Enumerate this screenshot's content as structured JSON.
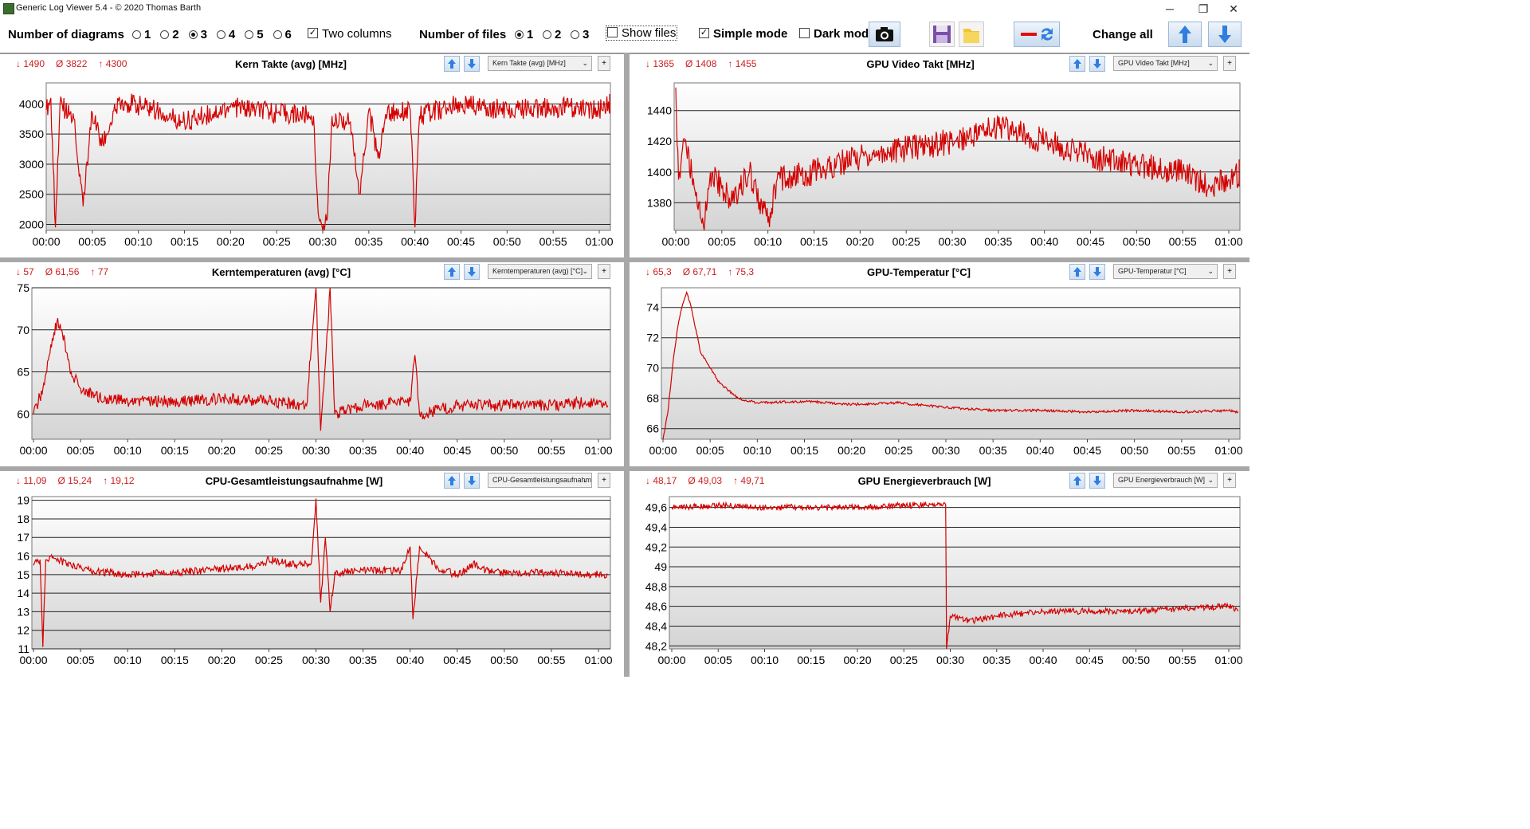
{
  "window": {
    "title": "Generic Log Viewer 5.4 - © 2020 Thomas Barth",
    "minimize": "─",
    "restore": "❐",
    "close": "✕"
  },
  "toolbar": {
    "diagrams_label": "Number of diagrams",
    "diagram_options": [
      "1",
      "2",
      "3",
      "4",
      "5",
      "6"
    ],
    "diagram_selected": "3",
    "two_columns_label": "Two columns",
    "two_columns_checked": true,
    "files_label": "Number of files",
    "file_options": [
      "1",
      "2",
      "3"
    ],
    "file_selected": "1",
    "show_files_label": "Show files",
    "show_files_checked": false,
    "simple_mode_label": "Simple mode",
    "simple_mode_checked": true,
    "dark_mode_label": "Dark mod",
    "dark_mode_checked": false,
    "change_all_label": "Change all"
  },
  "colors": {
    "series": "#d40000",
    "stats": "#cc1f1f",
    "accent": "#2f7fe0"
  },
  "panels": [
    {
      "id": "kern-takte",
      "title": "Kern Takte (avg) [MHz]",
      "dropdown": "Kern Takte (avg) [MHz]",
      "stats": {
        "min": "↓ 1490",
        "avg": "Ø 3822",
        "max": "↑ 4300"
      },
      "chart_data": {
        "type": "line",
        "title": "Kern Takte (avg) [MHz]",
        "x_ticks": [
          "00:00",
          "00:05",
          "00:10",
          "00:15",
          "00:20",
          "00:25",
          "00:30",
          "00:35",
          "00:40",
          "00:45",
          "00:50",
          "00:55",
          "01:00"
        ],
        "y_ticks": [
          "2000",
          "2500",
          "3000",
          "3500",
          "4000"
        ],
        "ylim": [
          1900,
          4350
        ],
        "xlim_min": [
          0,
          62
        ],
        "series": [
          {
            "points": [
              [
                0,
                3900
              ],
              [
                0.5,
                4100
              ],
              [
                1,
                1950
              ],
              [
                1.5,
                4000
              ],
              [
                3,
                3750
              ],
              [
                4,
                2300
              ],
              [
                5,
                3850
              ],
              [
                6,
                3300
              ],
              [
                8,
                4050
              ],
              [
                12,
                3900
              ],
              [
                15,
                3700
              ],
              [
                20,
                3950
              ],
              [
                25,
                3850
              ],
              [
                29,
                3800
              ],
              [
                29.5,
                2200
              ],
              [
                30,
                1900
              ],
              [
                30.5,
                2100
              ],
              [
                31,
                3800
              ],
              [
                33,
                3700
              ],
              [
                34,
                2500
              ],
              [
                35,
                3900
              ],
              [
                36,
                3100
              ],
              [
                37,
                3850
              ],
              [
                39.5,
                3900
              ],
              [
                40,
                1950
              ],
              [
                40.5,
                3800
              ],
              [
                45,
                4000
              ],
              [
                50,
                3900
              ],
              [
                55,
                3950
              ],
              [
                60,
                3900
              ],
              [
                62,
                4050
              ]
            ]
          }
        ]
      }
    },
    {
      "id": "gpu-video-takt",
      "title": "GPU Video Takt [MHz]",
      "dropdown": "GPU Video Takt [MHz]",
      "stats": {
        "min": "↓ 1365",
        "avg": "Ø 1408",
        "max": "↑ 1455"
      },
      "chart_data": {
        "type": "line",
        "title": "GPU Video Takt [MHz]",
        "x_ticks": [
          "00:00",
          "00:05",
          "00:10",
          "00:15",
          "00:20",
          "00:25",
          "00:30",
          "00:35",
          "00:40",
          "00:45",
          "00:50",
          "00:55",
          "01:00"
        ],
        "y_ticks": [
          "1380",
          "1400",
          "1420",
          "1440"
        ],
        "ylim": [
          1362,
          1458
        ],
        "xlim_min": [
          0,
          62
        ],
        "series": [
          {
            "points": [
              [
                0,
                1455
              ],
              [
                0.3,
                1395
              ],
              [
                1,
                1420
              ],
              [
                2,
                1390
              ],
              [
                3,
                1365
              ],
              [
                4,
                1400
              ],
              [
                6,
                1380
              ],
              [
                8,
                1400
              ],
              [
                10,
                1367
              ],
              [
                11,
                1395
              ],
              [
                15,
                1400
              ],
              [
                20,
                1410
              ],
              [
                25,
                1415
              ],
              [
                30,
                1420
              ],
              [
                35,
                1430
              ],
              [
                40,
                1420
              ],
              [
                45,
                1410
              ],
              [
                50,
                1405
              ],
              [
                55,
                1400
              ],
              [
                58,
                1390
              ],
              [
                60,
                1395
              ],
              [
                62,
                1400
              ]
            ]
          }
        ]
      }
    },
    {
      "id": "kerntemperaturen",
      "title": "Kerntemperaturen (avg) [°C]",
      "dropdown": "Kerntemperaturen (avg) [°C]",
      "stats": {
        "min": "↓ 57",
        "avg": "Ø 61,56",
        "max": "↑ 77"
      },
      "chart_data": {
        "type": "line",
        "title": "Kerntemperaturen (avg) [°C]",
        "x_ticks": [
          "00:00",
          "00:05",
          "00:10",
          "00:15",
          "00:20",
          "00:25",
          "00:30",
          "00:35",
          "00:40",
          "00:45",
          "00:50",
          "00:55",
          "01:00"
        ],
        "y_ticks": [
          "60",
          "65",
          "70",
          "75"
        ],
        "ylim": [
          57,
          75
        ],
        "xlim_min": [
          0,
          61
        ],
        "series": [
          {
            "points": [
              [
                0,
                60
              ],
              [
                1,
                63
              ],
              [
                2,
                69
              ],
              [
                2.5,
                71
              ],
              [
                3,
                70
              ],
              [
                4,
                65
              ],
              [
                5,
                63
              ],
              [
                7,
                62
              ],
              [
                10,
                61.5
              ],
              [
                15,
                61.5
              ],
              [
                20,
                61.8
              ],
              [
                25,
                61.5
              ],
              [
                29,
                61
              ],
              [
                30,
                75
              ],
              [
                30.5,
                58
              ],
              [
                31.5,
                75
              ],
              [
                32,
                60
              ],
              [
                35,
                61
              ],
              [
                40,
                61.5
              ],
              [
                40.5,
                67
              ],
              [
                41,
                60
              ],
              [
                45,
                61
              ],
              [
                50,
                61
              ],
              [
                55,
                61
              ],
              [
                60,
                61.5
              ],
              [
                61,
                61
              ]
            ]
          }
        ]
      }
    },
    {
      "id": "gpu-temperatur",
      "title": "GPU-Temperatur [°C]",
      "dropdown": "GPU-Temperatur [°C]",
      "stats": {
        "min": "↓ 65,3",
        "avg": "Ø 67,71",
        "max": "↑ 75,3"
      },
      "chart_data": {
        "type": "line",
        "title": "GPU-Temperatur [°C]",
        "x_ticks": [
          "00:00",
          "00:05",
          "00:10",
          "00:15",
          "00:20",
          "00:25",
          "00:30",
          "00:35",
          "00:40",
          "00:45",
          "00:50",
          "00:55",
          "01:00"
        ],
        "y_ticks": [
          "66",
          "68",
          "70",
          "72",
          "74"
        ],
        "ylim": [
          65.3,
          75.3
        ],
        "xlim_min": [
          0,
          61
        ],
        "series": [
          {
            "points": [
              [
                0,
                65.3
              ],
              [
                0.5,
                67
              ],
              [
                1,
                70
              ],
              [
                1.5,
                72.5
              ],
              [
                2,
                74
              ],
              [
                2.5,
                75
              ],
              [
                3,
                74
              ],
              [
                4,
                71
              ],
              [
                5,
                70
              ],
              [
                6,
                69
              ],
              [
                8,
                68
              ],
              [
                10,
                67.7
              ],
              [
                15,
                67.8
              ],
              [
                20,
                67.6
              ],
              [
                25,
                67.7
              ],
              [
                30,
                67.4
              ],
              [
                35,
                67.2
              ],
              [
                40,
                67.2
              ],
              [
                45,
                67.1
              ],
              [
                50,
                67.2
              ],
              [
                55,
                67.1
              ],
              [
                60,
                67.2
              ],
              [
                61,
                67.1
              ]
            ]
          }
        ]
      }
    },
    {
      "id": "cpu-gesamtleistung",
      "title": "CPU-Gesamtleistungsaufnahme [W]",
      "dropdown": "CPU-Gesamtleistungsaufnahme [W]",
      "stats": {
        "min": "↓ 11,09",
        "avg": "Ø 15,24",
        "max": "↑ 19,12"
      },
      "chart_data": {
        "type": "line",
        "title": "CPU-Gesamtleistungsaufnahme [W]",
        "x_ticks": [
          "00:00",
          "00:05",
          "00:10",
          "00:15",
          "00:20",
          "00:25",
          "00:30",
          "00:35",
          "00:40",
          "00:45",
          "00:50",
          "00:55",
          "01:00"
        ],
        "y_ticks": [
          "11",
          "12",
          "13",
          "14",
          "15",
          "16",
          "17",
          "18",
          "19"
        ],
        "ylim": [
          11,
          19.2
        ],
        "xlim_min": [
          0,
          61
        ],
        "series": [
          {
            "points": [
              [
                0,
                15.5
              ],
              [
                0.7,
                15.8
              ],
              [
                1,
                11.1
              ],
              [
                1.3,
                15.8
              ],
              [
                2,
                15.9
              ],
              [
                4,
                15.5
              ],
              [
                6,
                15.2
              ],
              [
                10,
                15.0
              ],
              [
                15,
                15.1
              ],
              [
                20,
                15.3
              ],
              [
                24,
                15.5
              ],
              [
                25,
                15.8
              ],
              [
                28,
                15.5
              ],
              [
                29.5,
                15.6
              ],
              [
                30,
                19.1
              ],
              [
                30.5,
                13.5
              ],
              [
                31,
                17
              ],
              [
                31.5,
                13
              ],
              [
                32,
                15.1
              ],
              [
                35,
                15.2
              ],
              [
                39,
                15.2
              ],
              [
                40,
                16.5
              ],
              [
                40.3,
                12.6
              ],
              [
                41,
                16.5
              ],
              [
                43,
                15.3
              ],
              [
                45,
                15
              ],
              [
                47,
                15.6
              ],
              [
                48,
                15.2
              ],
              [
                50,
                15.1
              ],
              [
                55,
                15.1
              ],
              [
                60,
                15
              ],
              [
                61,
                15
              ]
            ]
          }
        ]
      }
    },
    {
      "id": "gpu-energieverbrauch",
      "title": "GPU Energieverbrauch [W]",
      "dropdown": "GPU Energieverbrauch [W]",
      "stats": {
        "min": "↓ 48,17",
        "avg": "Ø 49,03",
        "max": "↑ 49,71"
      },
      "chart_data": {
        "type": "line",
        "title": "GPU Energieverbrauch [W]",
        "x_ticks": [
          "00:00",
          "00:05",
          "00:10",
          "00:15",
          "00:20",
          "00:25",
          "00:30",
          "00:35",
          "00:40",
          "00:45",
          "00:50",
          "00:55",
          "01:00"
        ],
        "y_ticks": [
          "48,2",
          "48,4",
          "48,6",
          "48,8",
          "49",
          "49,2",
          "49,4",
          "49,6"
        ],
        "ylim": [
          48.17,
          49.71
        ],
        "xlim_min": [
          0,
          61
        ],
        "series": [
          {
            "points": [
              [
                0,
                49.6
              ],
              [
                5,
                49.62
              ],
              [
                10,
                49.6
              ],
              [
                15,
                49.6
              ],
              [
                20,
                49.6
              ],
              [
                25,
                49.62
              ],
              [
                29.5,
                49.63
              ],
              [
                29.6,
                48.17
              ],
              [
                30,
                48.5
              ],
              [
                32,
                48.45
              ],
              [
                35,
                48.5
              ],
              [
                40,
                48.55
              ],
              [
                45,
                48.55
              ],
              [
                50,
                48.55
              ],
              [
                55,
                48.58
              ],
              [
                60,
                48.6
              ],
              [
                61,
                48.55
              ]
            ]
          }
        ]
      }
    }
  ]
}
